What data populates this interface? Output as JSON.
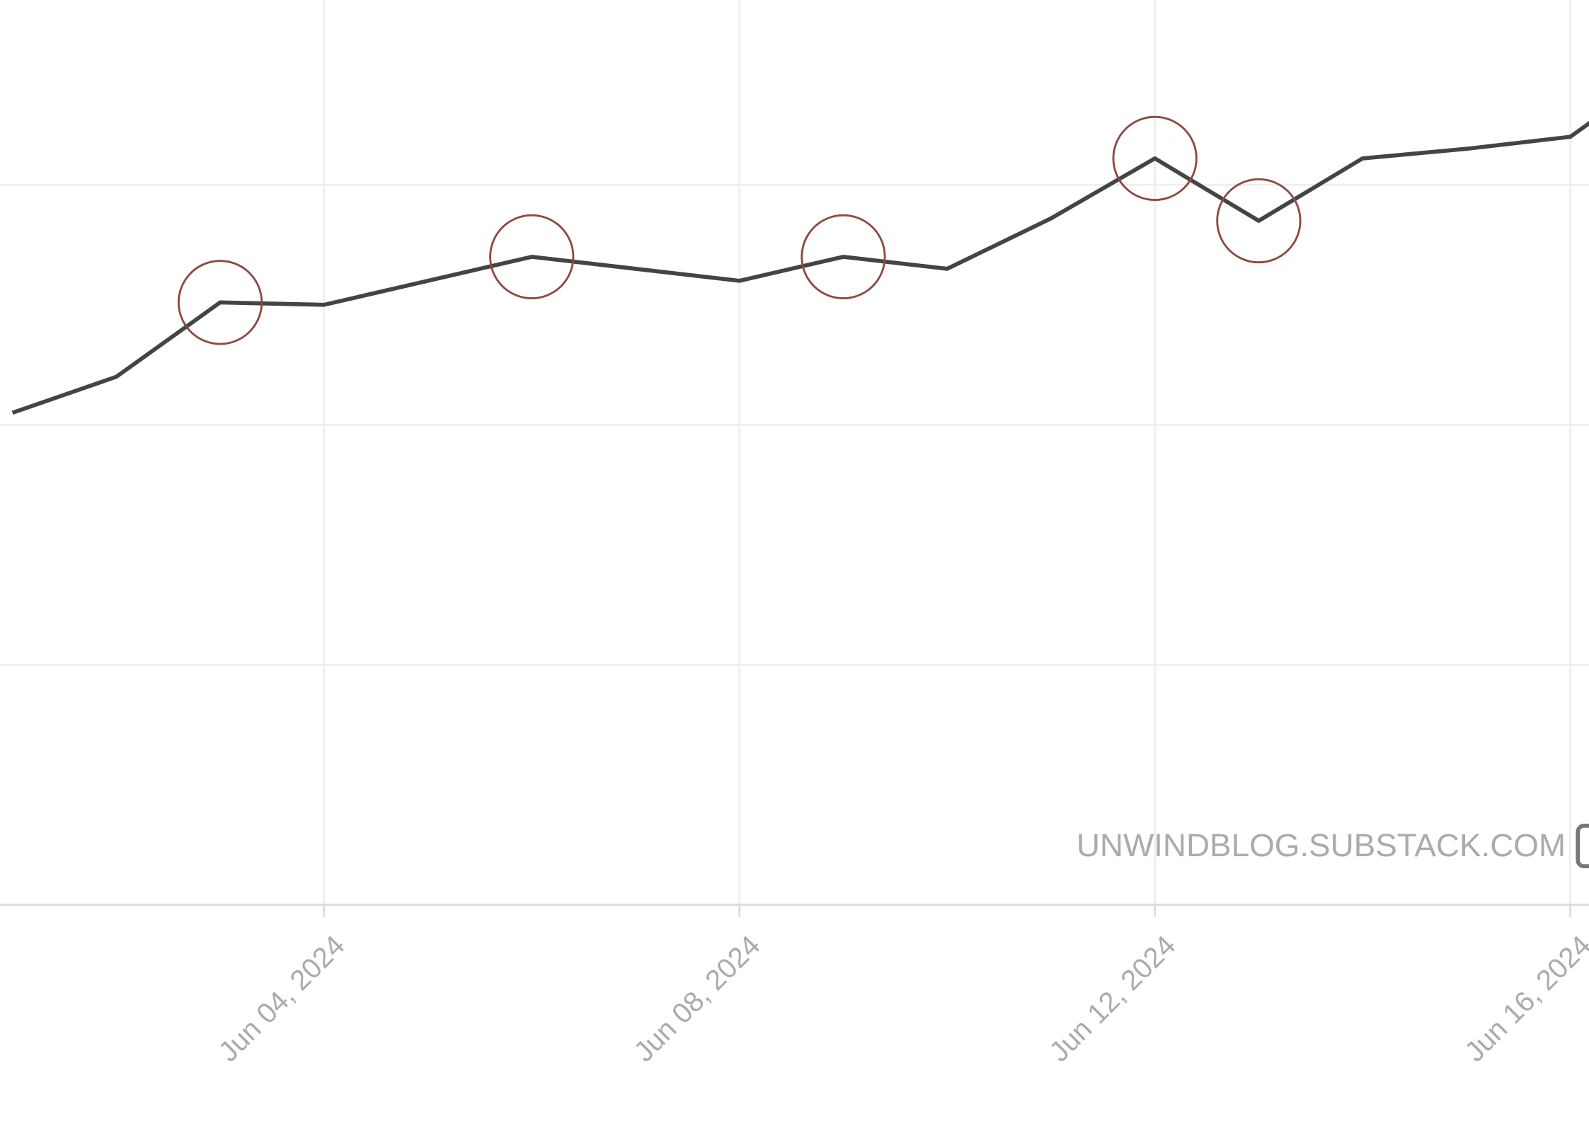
{
  "chart_data": {
    "type": "line",
    "x": [
      1,
      2,
      3,
      4,
      5,
      6,
      7,
      8,
      9,
      10,
      11,
      12,
      13,
      14,
      15,
      16,
      17
    ],
    "series": [
      {
        "color": "#444444",
        "values": [
          2.05,
          2.2,
          2.51,
          2.5,
          2.6,
          2.7,
          2.65,
          2.6,
          2.7,
          2.65,
          2.86,
          3.11,
          2.85,
          3.11,
          3.15,
          3.2,
          3.51
        ]
      }
    ],
    "highlights": [
      3,
      6,
      9,
      12,
      13
    ],
    "highlight_color": "#8b4a42",
    "xlim": [
      0.88,
      16.18
    ],
    "xticks": [
      {
        "value": 4,
        "label": "Jun 04, 2024"
      },
      {
        "value": 8,
        "label": "Jun 08, 2024"
      },
      {
        "value": 12,
        "label": "Jun 12, 2024"
      },
      {
        "value": 16,
        "label": "Jun 16, 2024"
      }
    ],
    "ylim": [
      0,
      3.77
    ],
    "yticks": [
      1,
      2,
      3
    ],
    "grid": true,
    "watermark": "UNWINDBLOG.SUBSTACK.COM"
  }
}
